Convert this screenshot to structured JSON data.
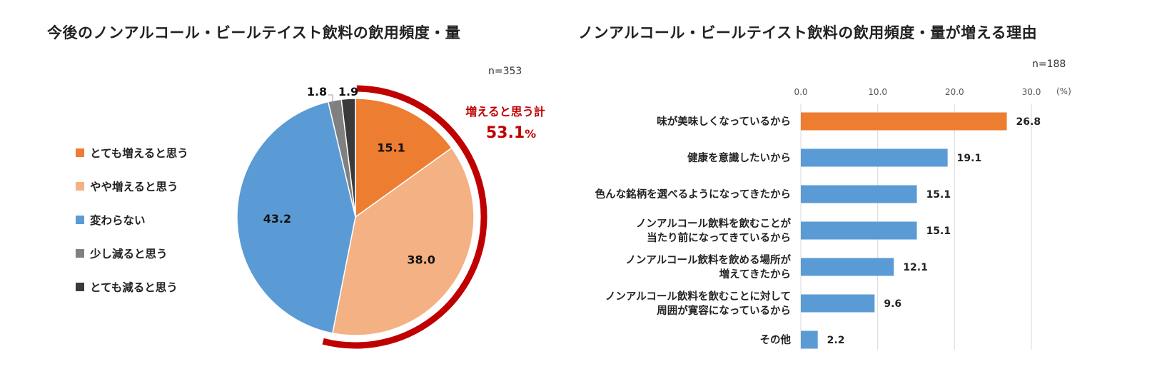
{
  "left": {
    "title": "今後のノンアルコール・ビールテイスト飲料の飲用頻度・量",
    "n": "n=353",
    "increase_label": "増えると思う計",
    "increase_value": "53.1",
    "increase_unit": "%",
    "legend": [
      {
        "label": "とても増えると思う",
        "color": "#ED7D31"
      },
      {
        "label": "やや増えると思う",
        "color": "#F4B183"
      },
      {
        "label": "変わらない",
        "color": "#5B9BD5"
      },
      {
        "label": "少し減ると思う",
        "color": "#808080"
      },
      {
        "label": "とても減ると思う",
        "color": "#3A3A3A"
      }
    ]
  },
  "right": {
    "title": "ノンアルコール・ビールテイスト飲料の飲用頻度・量が増える理由",
    "n": "n=188",
    "unit": "(%)"
  },
  "colors": {
    "highlight_bar": "#ED7D31",
    "bar": "#5B9BD5",
    "ring": "#C00000"
  },
  "chart_data": [
    {
      "type": "pie",
      "categories": [
        "とても増えると思う",
        "やや増えると思う",
        "変わらない",
        "少し減ると思う",
        "とても減ると思う"
      ],
      "values": [
        15.1,
        38.0,
        43.2,
        1.8,
        1.9
      ],
      "value_labels": [
        "15.1",
        "38.0",
        "43.2",
        "1.8",
        "1.9"
      ],
      "title": "今後のノンアルコール・ビールテイスト飲料の飲用頻度・量",
      "legend": "left"
    },
    {
      "type": "bar",
      "orientation": "horizontal",
      "categories": [
        "味が美味しくなっているから",
        "健康を意識したいから",
        "色んな銘柄を選べるようになってきたから",
        "ノンアルコール飲料を飲むことが\n当たり前になってきているから",
        "ノンアルコール飲料を飲める場所が\n増えてきたから",
        "ノンアルコール飲料を飲むことに対して\n周囲が寛容になっているから",
        "その他"
      ],
      "values": [
        26.8,
        19.1,
        15.1,
        15.1,
        12.1,
        9.6,
        2.2
      ],
      "value_labels": [
        "26.8",
        "19.1",
        "15.1",
        "15.1",
        "12.1",
        "9.6",
        "2.2"
      ],
      "xlim": [
        0,
        30
      ],
      "xticks": [
        "0.0",
        "10.0",
        "20.0",
        "30.0"
      ],
      "title": "ノンアルコール・ビールテイスト飲料の飲用頻度・量が増える理由",
      "grid": true
    }
  ]
}
